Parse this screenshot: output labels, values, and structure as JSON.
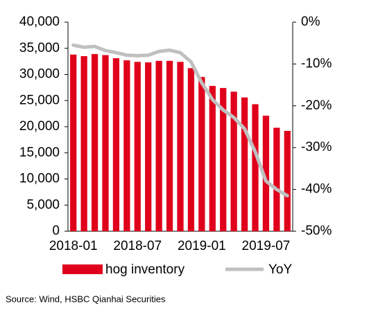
{
  "chart_data": {
    "type": "bar_line",
    "categories": [
      "2018-01",
      null,
      null,
      null,
      null,
      null,
      "2018-07",
      null,
      null,
      null,
      null,
      null,
      "2019-01",
      null,
      null,
      null,
      null,
      null,
      "2019-07",
      null,
      null
    ],
    "series": [
      {
        "name": "hog inventory",
        "type": "bar",
        "color": "#e0001b",
        "values": [
          33800,
          33500,
          33900,
          33700,
          33100,
          32700,
          32400,
          32300,
          32600,
          32600,
          32400,
          31200,
          29500,
          27800,
          27400,
          26700,
          25600,
          24300,
          22100,
          19800,
          19200
        ]
      },
      {
        "name": "YoY",
        "type": "line",
        "axis": "y2",
        "color": "#c0c0c0",
        "values": [
          -5.5,
          -6.0,
          -5.8,
          -6.8,
          -7.3,
          -7.9,
          -8.0,
          -7.9,
          -7.0,
          -6.7,
          -7.3,
          -9.5,
          -14.5,
          -18.5,
          -21.0,
          -22.8,
          -25.5,
          -31.0,
          -38.0,
          -40.0,
          -41.5
        ]
      }
    ],
    "ylim": [
      0,
      40000
    ],
    "yticks": [
      0,
      {
        "value": 5000,
        "label": "5,000"
      },
      {
        "value": 10000,
        "label": "10,000"
      },
      {
        "value": 15000,
        "label": "15,000"
      },
      {
        "value": 20000,
        "label": "20,000"
      },
      {
        "value": 25000,
        "label": "25,000"
      },
      {
        "value": 30000,
        "label": "30,000"
      },
      {
        "value": 35000,
        "label": "35,000"
      },
      {
        "value": 40000,
        "label": "40,000"
      }
    ],
    "y2lim": [
      -50,
      0
    ],
    "y2ticks": [
      {
        "value": 0,
        "label": "0%"
      },
      {
        "value": -10,
        "label": "-10%"
      },
      {
        "value": -20,
        "label": "-20%"
      },
      {
        "value": -30,
        "label": "-30%"
      },
      {
        "value": -40,
        "label": "-40%"
      },
      {
        "value": -50,
        "label": "-50%"
      }
    ],
    "source": "Source: Wind, HSBC Qianhai Securities"
  }
}
